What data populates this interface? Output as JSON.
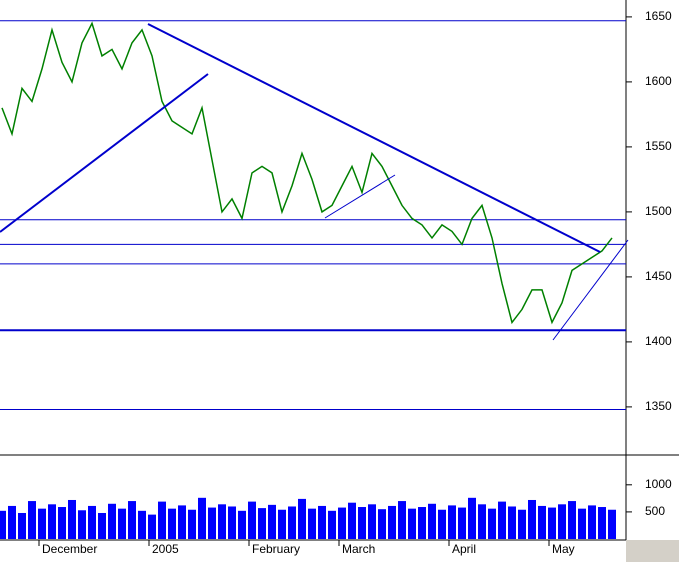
{
  "chart_data": [
    {
      "type": "line",
      "color": "#008000",
      "values": [
        1580,
        1560,
        1595,
        1585,
        1610,
        1640,
        1615,
        1600,
        1630,
        1645,
        1620,
        1625,
        1610,
        1630,
        1640,
        1620,
        1585,
        1570,
        1565,
        1560,
        1580,
        1540,
        1500,
        1510,
        1495,
        1530,
        1535,
        1530,
        1500,
        1520,
        1545,
        1525,
        1500,
        1505,
        1520,
        1535,
        1515,
        1545,
        1535,
        1520,
        1505,
        1495,
        1490,
        1480,
        1490,
        1485,
        1475,
        1495,
        1505,
        1480,
        1445,
        1415,
        1425,
        1440,
        1440,
        1415,
        1430,
        1455,
        1460,
        1465,
        1470,
        1480
      ],
      "ylim": [
        1313,
        1663
      ],
      "yticks": [
        1350,
        1400,
        1450,
        1500,
        1550,
        1600,
        1650
      ],
      "hlines": [
        1647,
        1494,
        1475,
        1460,
        1409,
        1348
      ],
      "hline_color": "#0000cc"
    },
    {
      "type": "bar",
      "color": "#0000ff",
      "categories": [
        null,
        null,
        null,
        null,
        "December",
        null,
        null,
        null,
        null,
        null,
        null,
        null,
        null,
        null,
        null,
        "2005",
        null,
        null,
        null,
        null,
        null,
        null,
        null,
        null,
        null,
        "February",
        null,
        null,
        null,
        null,
        null,
        null,
        null,
        null,
        "March",
        null,
        null,
        null,
        null,
        null,
        null,
        null,
        null,
        null,
        null,
        "April",
        null,
        null,
        null,
        null,
        null,
        null,
        null,
        null,
        null,
        "May",
        null,
        null,
        null,
        null,
        null,
        null
      ],
      "values": [
        520,
        610,
        480,
        700,
        560,
        640,
        590,
        720,
        530,
        610,
        480,
        650,
        560,
        700,
        520,
        450,
        690,
        560,
        620,
        540,
        760,
        580,
        640,
        600,
        520,
        690,
        570,
        630,
        540,
        600,
        740,
        560,
        610,
        520,
        580,
        670,
        590,
        640,
        550,
        610,
        700,
        560,
        590,
        650,
        540,
        620,
        580,
        760,
        640,
        560,
        690,
        600,
        540,
        720,
        610,
        580,
        640,
        700,
        560,
        620,
        590,
        540
      ],
      "ylim": [
        0,
        1550
      ],
      "yticks": [
        500,
        1000
      ]
    }
  ]
}
